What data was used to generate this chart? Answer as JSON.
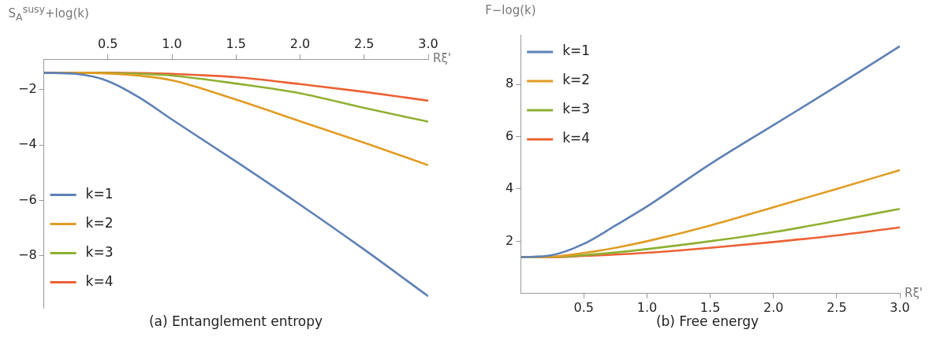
{
  "chart_data": [
    {
      "type": "line",
      "title": "(a)  Entanglement entropy",
      "ylabel": "S$_{A}$$^{susy}$+log(k)",
      "xlabel": "Rξ'",
      "x": [
        0,
        0.25,
        0.5,
        0.75,
        1,
        1.5,
        2,
        2.5,
        3
      ],
      "xlim": [
        0,
        3
      ],
      "ylim": [
        -9.9,
        -0.9
      ],
      "xticks": [
        0.5,
        {
          "value": 1,
          "label": "1.0"
        },
        1.5,
        {
          "value": 2,
          "label": "2.0"
        },
        2.5,
        {
          "value": 3,
          "label": "3.0"
        }
      ],
      "yticks": [
        {
          "value": -2,
          "label": "−2"
        },
        {
          "value": -4,
          "label": "−4"
        },
        {
          "value": -6,
          "label": "−6"
        },
        {
          "value": -8,
          "label": "−8"
        }
      ],
      "grid": false,
      "legend": "bottom left",
      "marker": "none",
      "line_style": "solid",
      "series": [
        {
          "name": "k=1",
          "color": "#5e81b5",
          "values": [
            -1.39,
            -1.43,
            -1.69,
            -2.3,
            -3.08,
            -4.6,
            -6.16,
            -7.78,
            -9.47
          ]
        },
        {
          "name": "k=2",
          "color": "#e19c24",
          "values": [
            -1.39,
            -1.39,
            -1.42,
            -1.5,
            -1.66,
            -2.36,
            -3.14,
            -3.92,
            -4.73
          ]
        },
        {
          "name": "k=3",
          "color": "#8fb032",
          "values": [
            -1.39,
            -1.39,
            -1.4,
            -1.43,
            -1.49,
            -1.78,
            -2.13,
            -2.66,
            -3.16
          ]
        },
        {
          "name": "k=4",
          "color": "#eb6235",
          "values": [
            -1.39,
            -1.39,
            -1.39,
            -1.4,
            -1.43,
            -1.55,
            -1.8,
            -2.08,
            -2.4
          ]
        }
      ]
    },
    {
      "type": "line",
      "title": "(b)  Free energy",
      "ylabel": "F−log(k)",
      "xlabel": "Rξ'",
      "x": [
        0,
        0.25,
        0.5,
        0.75,
        1,
        1.5,
        2,
        2.5,
        3
      ],
      "xlim": [
        0,
        3
      ],
      "ylim": [
        0,
        9.9
      ],
      "xticks": [
        0.5,
        {
          "value": 1,
          "label": "1.0"
        },
        1.5,
        {
          "value": 2,
          "label": "2.0"
        },
        2.5,
        {
          "value": 3,
          "label": "3.0"
        }
      ],
      "yticks": [
        2,
        4,
        6,
        8
      ],
      "grid": false,
      "legend": "top left",
      "marker": "none",
      "line_style": "solid",
      "series": [
        {
          "name": "k=1",
          "color": "#5e81b5",
          "values": [
            1.39,
            1.47,
            1.9,
            2.6,
            3.33,
            4.95,
            6.44,
            7.93,
            9.46
          ]
        },
        {
          "name": "k=2",
          "color": "#e19c24",
          "values": [
            1.39,
            1.41,
            1.55,
            1.75,
            2.0,
            2.6,
            3.3,
            4.0,
            4.72
          ]
        },
        {
          "name": "k=3",
          "color": "#8fb032",
          "values": [
            1.39,
            1.4,
            1.47,
            1.57,
            1.7,
            2.0,
            2.35,
            2.78,
            3.24
          ]
        },
        {
          "name": "k=4",
          "color": "#eb6235",
          "values": [
            1.39,
            1.39,
            1.44,
            1.49,
            1.56,
            1.75,
            1.97,
            2.22,
            2.53
          ]
        }
      ]
    }
  ]
}
